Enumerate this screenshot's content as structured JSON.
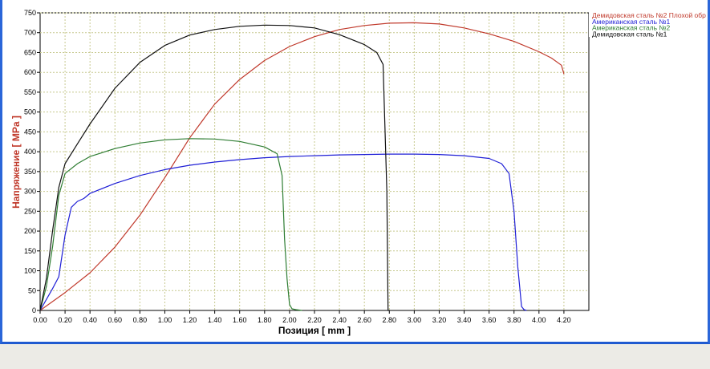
{
  "chart_data": {
    "type": "line",
    "xlabel": "Позиция [ mm ]",
    "ylabel": "Напряжение [ MPa ]",
    "xlim": [
      0,
      4.4
    ],
    "ylim": [
      0,
      750
    ],
    "xticks": [
      "0.00",
      "0.20",
      "0.40",
      "0.60",
      "0.80",
      "1.00",
      "1.20",
      "1.40",
      "1.60",
      "1.80",
      "2.00",
      "2.20",
      "2.40",
      "2.60",
      "2.80",
      "3.00",
      "3.20",
      "3.40",
      "3.60",
      "3.80",
      "4.00",
      "4.20"
    ],
    "yticks": [
      "0",
      "50",
      "100",
      "150",
      "200",
      "250",
      "300",
      "350",
      "400",
      "450",
      "500",
      "550",
      "600",
      "650",
      "700",
      "750"
    ],
    "grid": true,
    "legend_position": "top-right",
    "series": [
      {
        "name": "Демидовская сталь №2 Плохой обр",
        "color": "#c0392b",
        "x": [
          0,
          0.2,
          0.4,
          0.6,
          0.8,
          1.0,
          1.2,
          1.4,
          1.6,
          1.8,
          2.0,
          2.2,
          2.4,
          2.6,
          2.8,
          3.0,
          3.2,
          3.4,
          3.6,
          3.8,
          4.0,
          4.1,
          4.18,
          4.2
        ],
        "y": [
          0,
          45,
          95,
          160,
          240,
          335,
          435,
          520,
          582,
          630,
          665,
          690,
          708,
          718,
          724,
          725,
          722,
          712,
          697,
          678,
          652,
          636,
          618,
          596
        ]
      },
      {
        "name": "Американская сталь №1",
        "color": "#1f1fd6",
        "x": [
          0,
          0.1,
          0.15,
          0.2,
          0.25,
          0.3,
          0.35,
          0.4,
          0.6,
          0.8,
          1.0,
          1.2,
          1.4,
          1.6,
          1.8,
          2.0,
          2.2,
          2.4,
          2.6,
          2.8,
          3.0,
          3.2,
          3.4,
          3.6,
          3.7,
          3.76,
          3.8,
          3.83,
          3.86,
          3.88,
          3.9
        ],
        "y": [
          0,
          55,
          85,
          190,
          260,
          275,
          282,
          295,
          320,
          340,
          355,
          366,
          374,
          380,
          385,
          388,
          390,
          392,
          393,
          394,
          394,
          393,
          390,
          383,
          370,
          345,
          250,
          110,
          10,
          2,
          0
        ]
      },
      {
        "name": "Американская сталь №2",
        "color": "#2e7d32",
        "x": [
          0,
          0.05,
          0.1,
          0.15,
          0.2,
          0.3,
          0.4,
          0.6,
          0.8,
          1.0,
          1.2,
          1.4,
          1.6,
          1.8,
          1.9,
          1.94,
          1.96,
          1.98,
          2.0,
          2.02,
          2.05,
          2.1
        ],
        "y": [
          0,
          60,
          160,
          290,
          345,
          370,
          388,
          408,
          422,
          430,
          433,
          432,
          426,
          412,
          395,
          340,
          180,
          80,
          15,
          4,
          2,
          0
        ]
      },
      {
        "name": "Демидовская сталь №1",
        "color": "#111111",
        "x": [
          0,
          0.05,
          0.1,
          0.15,
          0.2,
          0.3,
          0.4,
          0.6,
          0.8,
          1.0,
          1.2,
          1.4,
          1.6,
          1.8,
          2.0,
          2.2,
          2.4,
          2.6,
          2.7,
          2.75,
          2.78,
          2.79,
          2.8
        ],
        "y": [
          0,
          80,
          200,
          310,
          370,
          420,
          470,
          560,
          625,
          668,
          694,
          708,
          716,
          719,
          718,
          712,
          695,
          670,
          650,
          620,
          300,
          0,
          0
        ]
      }
    ]
  }
}
